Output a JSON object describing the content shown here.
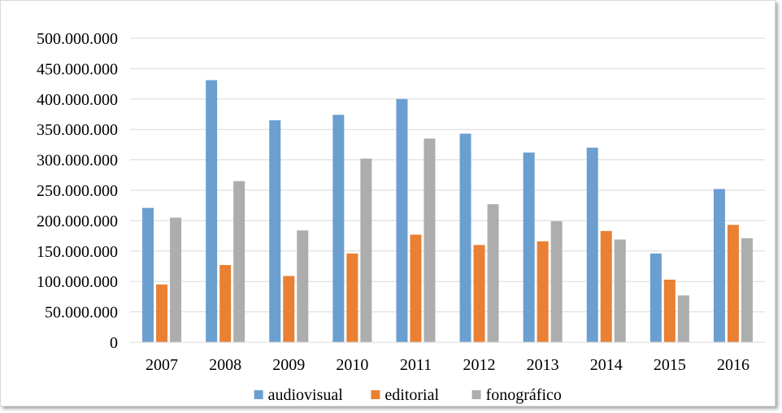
{
  "chart_data": {
    "type": "bar",
    "categories": [
      "2007",
      "2008",
      "2009",
      "2010",
      "2011",
      "2012",
      "2013",
      "2014",
      "2015",
      "2016"
    ],
    "series": [
      {
        "name": "audiovisual",
        "color": "#6a9fd0",
        "values": [
          221000000,
          431000000,
          365000000,
          374000000,
          400000000,
          343000000,
          312000000,
          320000000,
          146000000,
          252000000
        ]
      },
      {
        "name": "editorial",
        "color": "#ea8034",
        "values": [
          95000000,
          127000000,
          109000000,
          146000000,
          177000000,
          160000000,
          166000000,
          183000000,
          103000000,
          193000000
        ]
      },
      {
        "name": "fonográfico",
        "color": "#adadad",
        "values": [
          205000000,
          265000000,
          184000000,
          302000000,
          335000000,
          227000000,
          199000000,
          169000000,
          77000000,
          171000000
        ]
      }
    ],
    "y_ticks": [
      "0",
      "50.000.000",
      "100.000.000",
      "150.000.000",
      "200.000.000",
      "250.000.000",
      "300.000.000",
      "350.000.000",
      "400.000.000",
      "450.000.000",
      "500.000.000"
    ],
    "ylim": [
      0,
      500000000
    ],
    "grid": true,
    "legend_position": "bottom"
  }
}
